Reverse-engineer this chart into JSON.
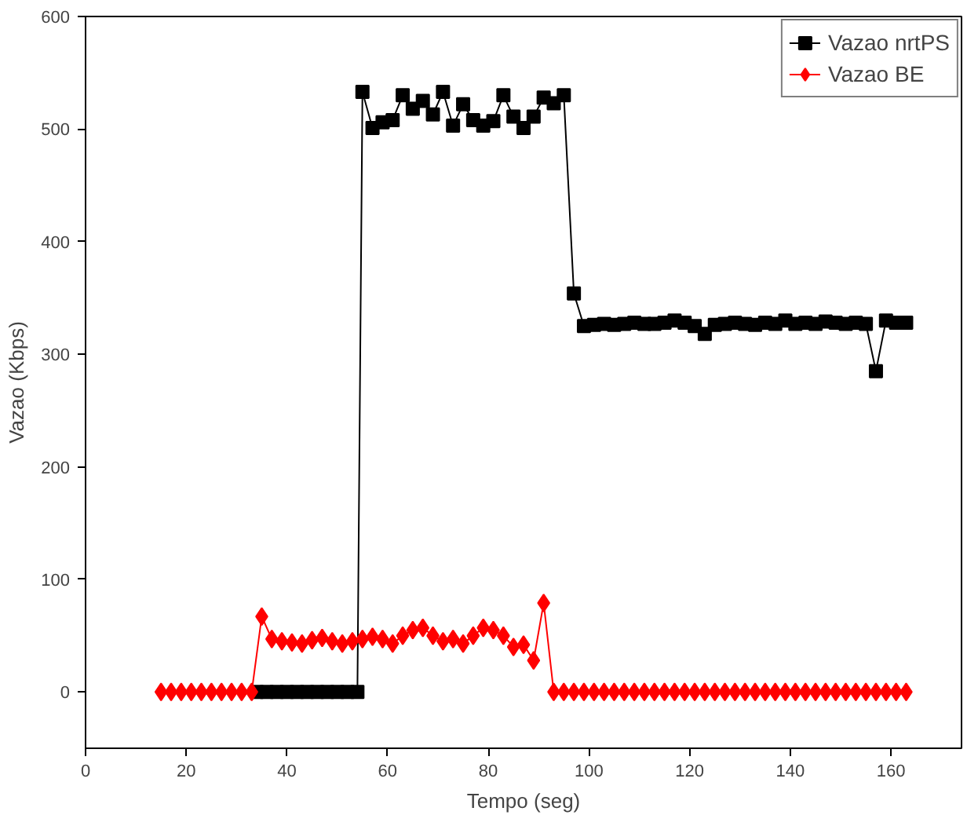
{
  "chart_data": {
    "type": "line",
    "xlabel": "Tempo (seg)",
    "ylabel": "Vazao (Kbps)",
    "xlim": [
      0,
      174
    ],
    "ylim": [
      -50,
      600
    ],
    "xticks": [
      0,
      20,
      40,
      60,
      80,
      100,
      120,
      140,
      160
    ],
    "yticks": [
      0,
      100,
      200,
      300,
      400,
      500,
      600
    ],
    "grid": false,
    "legend": "top right",
    "line_style": "solid",
    "series": [
      {
        "name": "Vazao nrtPS",
        "color": "#000000",
        "marker": "square",
        "x": [
          34,
          36,
          38,
          40,
          42,
          44,
          46,
          48,
          50,
          52,
          54,
          55,
          57,
          59,
          61,
          63,
          65,
          67,
          69,
          71,
          73,
          75,
          77,
          79,
          81,
          83,
          85,
          87,
          89,
          91,
          93,
          95,
          97,
          99,
          101,
          103,
          105,
          107,
          109,
          111,
          113,
          115,
          117,
          119,
          121,
          123,
          125,
          127,
          129,
          131,
          133,
          135,
          137,
          139,
          141,
          143,
          145,
          147,
          149,
          151,
          153,
          155,
          157,
          159,
          161,
          163
        ],
        "values": [
          0,
          0,
          0,
          0,
          0,
          0,
          0,
          0,
          0,
          0,
          0,
          533,
          501,
          506,
          508,
          530,
          518,
          525,
          513,
          533,
          503,
          522,
          508,
          503,
          507,
          530,
          511,
          501,
          511,
          528,
          523,
          530,
          354,
          325,
          326,
          327,
          326,
          327,
          328,
          327,
          327,
          328,
          330,
          328,
          325,
          318,
          326,
          327,
          328,
          327,
          326,
          328,
          327,
          330,
          327,
          328,
          327,
          329,
          328,
          327,
          328,
          327,
          285,
          330,
          328,
          328
        ]
      },
      {
        "name": "Vazao BE",
        "color": "#ff0000",
        "marker": "diamond",
        "x": [
          15,
          17,
          19,
          21,
          23,
          25,
          27,
          29,
          31,
          33,
          35,
          37,
          39,
          41,
          43,
          45,
          47,
          49,
          51,
          53,
          55,
          57,
          59,
          61,
          63,
          65,
          67,
          69,
          71,
          73,
          75,
          77,
          79,
          81,
          83,
          85,
          87,
          89,
          91,
          93,
          95,
          97,
          99,
          101,
          103,
          105,
          107,
          109,
          111,
          113,
          115,
          117,
          119,
          121,
          123,
          125,
          127,
          129,
          131,
          133,
          135,
          137,
          139,
          141,
          143,
          145,
          147,
          149,
          151,
          153,
          155,
          157,
          159,
          161,
          163
        ],
        "values": [
          0,
          0,
          0,
          0,
          0,
          0,
          0,
          0,
          0,
          0,
          67,
          47,
          45,
          44,
          43,
          46,
          48,
          45,
          43,
          45,
          47,
          49,
          47,
          43,
          50,
          55,
          57,
          50,
          45,
          47,
          43,
          50,
          57,
          55,
          50,
          40,
          42,
          28,
          79,
          0,
          0,
          0,
          0,
          0,
          0,
          0,
          0,
          0,
          0,
          0,
          0,
          0,
          0,
          0,
          0,
          0,
          0,
          0,
          0,
          0,
          0,
          0,
          0,
          0,
          0,
          0,
          0,
          0,
          0,
          0,
          0,
          0,
          0,
          0,
          0
        ]
      }
    ]
  }
}
